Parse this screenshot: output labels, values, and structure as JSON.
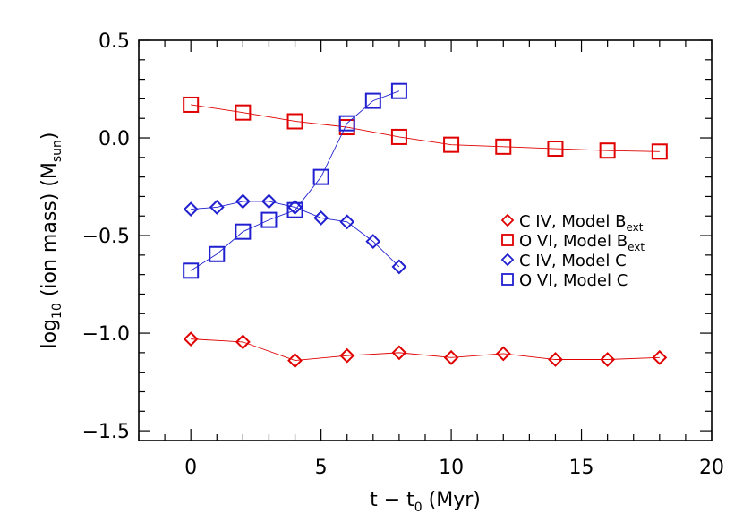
{
  "chart_data": {
    "type": "line",
    "title": "",
    "xlabel": "t − t",
    "xlabel_sub": "0",
    "xlabel_units": " (Myr)",
    "ylabel": "log",
    "ylabel_sub": "10",
    "ylabel_mid": " (ion mass) (M",
    "ylabel_sub2": "sun",
    "ylabel_end": ")",
    "xlim": [
      -2,
      20
    ],
    "ylim": [
      -1.55,
      0.5
    ],
    "xticks": [
      0,
      5,
      10,
      15,
      20
    ],
    "xtick_labels": [
      "0",
      "5",
      "10",
      "15",
      "20"
    ],
    "yticks": [
      0.5,
      0.0,
      -0.5,
      -1.0,
      -1.5
    ],
    "ytick_labels": [
      "0.5",
      "0.0",
      "−0.5",
      "−1.0",
      "−1.5"
    ],
    "series": [
      {
        "name": "C IV, Model B",
        "name_sub": "ext",
        "color": "#e00000",
        "marker": "diamond",
        "x": [
          0,
          2,
          4,
          6,
          8,
          10,
          12,
          14,
          16,
          18
        ],
        "y": [
          -1.03,
          -1.045,
          -1.14,
          -1.115,
          -1.1,
          -1.125,
          -1.105,
          -1.135,
          -1.135,
          -1.125
        ]
      },
      {
        "name": "O VI, Model B",
        "name_sub": "ext",
        "color": "#e00000",
        "marker": "square",
        "x": [
          0,
          2,
          4,
          6,
          8,
          10,
          12,
          14,
          16,
          18
        ],
        "y": [
          0.17,
          0.13,
          0.085,
          0.055,
          0.005,
          -0.035,
          -0.045,
          -0.055,
          -0.065,
          -0.07
        ]
      },
      {
        "name": "C IV, Model C",
        "name_sub": "",
        "color": "#2020d0",
        "marker": "diamond",
        "x": [
          0,
          1,
          2,
          3,
          4,
          5,
          6,
          7,
          8
        ],
        "y": [
          -0.365,
          -0.355,
          -0.325,
          -0.325,
          -0.355,
          -0.41,
          -0.43,
          -0.53,
          -0.66
        ]
      },
      {
        "name": "O VI, Model C",
        "name_sub": "",
        "color": "#2020d0",
        "marker": "square",
        "x": [
          0,
          1,
          2,
          3,
          4,
          5,
          6,
          7,
          8
        ],
        "y": [
          -0.68,
          -0.595,
          -0.48,
          -0.42,
          -0.37,
          -0.2,
          0.075,
          0.19,
          0.24
        ]
      }
    ],
    "legend_position": "center-right"
  }
}
